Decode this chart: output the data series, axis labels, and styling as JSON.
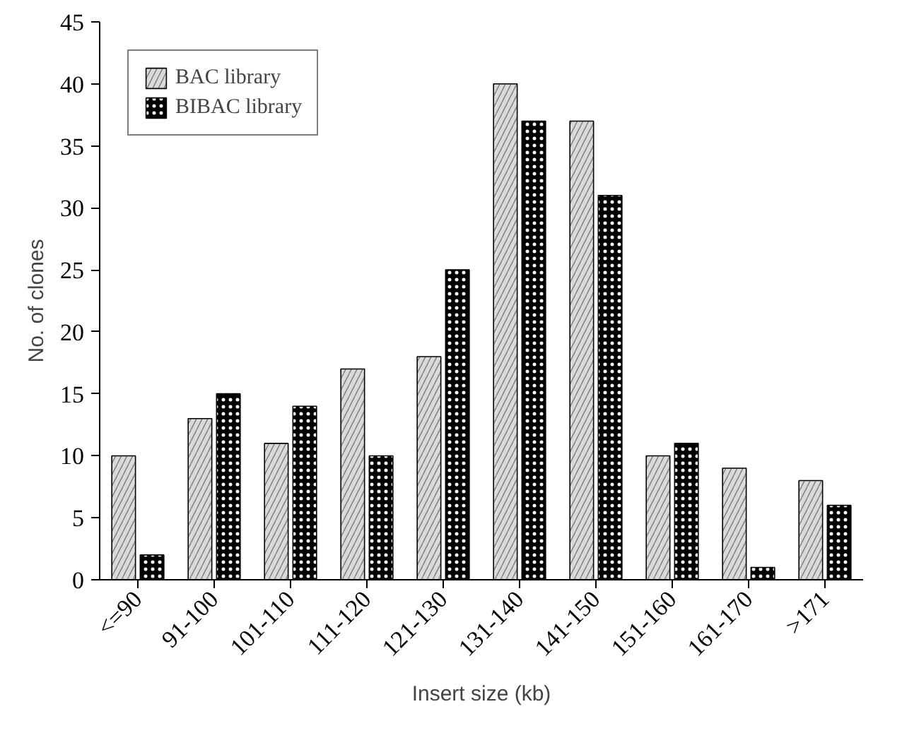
{
  "chart_data": {
    "type": "bar",
    "xlabel": "Insert size (kb)",
    "ylabel": "No. of clones",
    "categories": [
      "<=90",
      "91-100",
      "101-110",
      "111-120",
      "121-130",
      "131-140",
      "141-150",
      "151-160",
      "161-170",
      ">171"
    ],
    "series": [
      {
        "name": "BAC library",
        "color": "#d9d9d9",
        "values": [
          10,
          13,
          11,
          17,
          18,
          40,
          37,
          10,
          9,
          8
        ]
      },
      {
        "name": "BIBAC library",
        "color": "#000000",
        "values": [
          2,
          15,
          14,
          10,
          25,
          37,
          31,
          11,
          1,
          6
        ]
      }
    ],
    "ylim": [
      0,
      45
    ],
    "yticks": [
      0,
      5,
      10,
      15,
      20,
      25,
      30,
      35,
      40,
      45
    ],
    "grid": false,
    "legend": "top left"
  }
}
